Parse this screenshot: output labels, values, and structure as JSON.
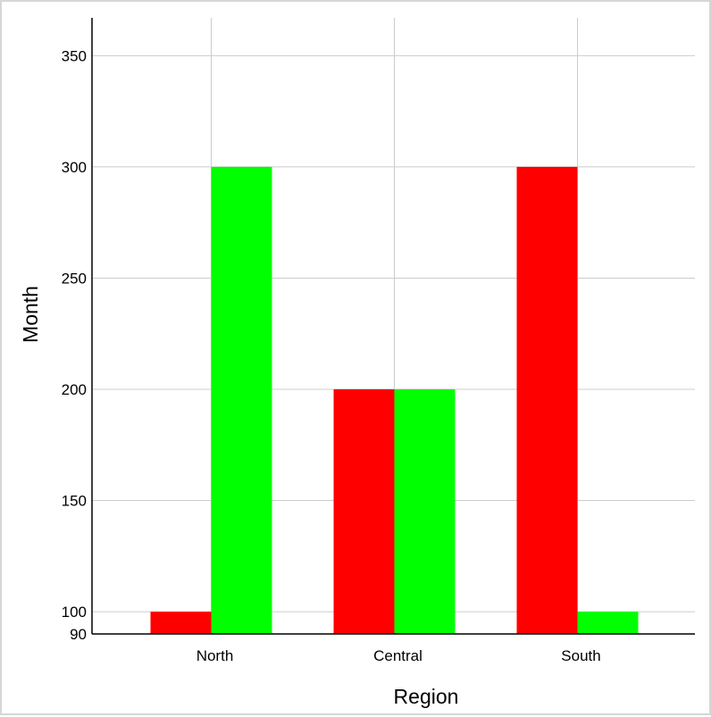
{
  "chart_data": {
    "type": "bar",
    "title": "",
    "xlabel": "Region",
    "ylabel": "Month",
    "categories": [
      "North",
      "Central",
      "South"
    ],
    "series": [
      {
        "values": [
          100,
          200,
          300
        ],
        "color": "#ff0000"
      },
      {
        "values": [
          300,
          200,
          100
        ],
        "color": "#00ff00"
      }
    ],
    "ylim": [
      90,
      367
    ],
    "yticks": [
      90,
      100,
      150,
      200,
      250,
      300,
      350
    ],
    "grid": true,
    "legend": "none",
    "colors": {
      "grid": "#cccccc",
      "axis": "#000000",
      "background": "#ffffff",
      "frame": "#d6d6d6"
    }
  }
}
